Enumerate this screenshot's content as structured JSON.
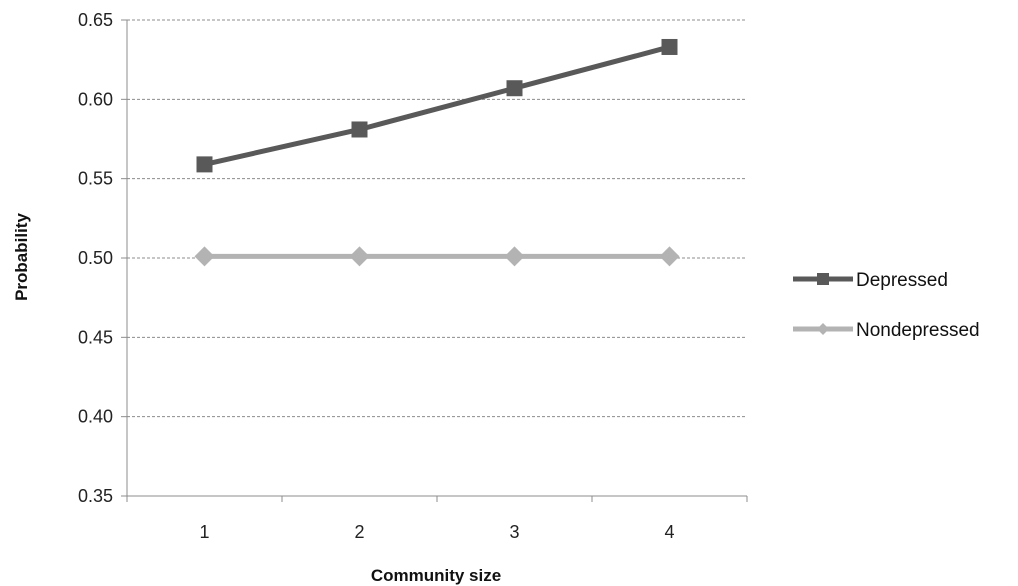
{
  "chart_data": {
    "type": "line",
    "title": "",
    "xlabel": "Community size",
    "ylabel": "Probability",
    "categories": [
      "1",
      "2",
      "3",
      "4"
    ],
    "ylim": [
      0.35,
      0.65
    ],
    "yticks": [
      "0.35",
      "0.40",
      "0.45",
      "0.50",
      "0.55",
      "0.60",
      "0.65"
    ],
    "grid": true,
    "legend_position": "right",
    "series": [
      {
        "name": "Depressed",
        "values": [
          0.559,
          0.581,
          0.607,
          0.633
        ],
        "color": "#595959",
        "marker": "square"
      },
      {
        "name": "Nondepressed",
        "values": [
          0.501,
          0.501,
          0.501,
          0.501
        ],
        "color": "#b3b3b3",
        "marker": "diamond"
      }
    ]
  }
}
